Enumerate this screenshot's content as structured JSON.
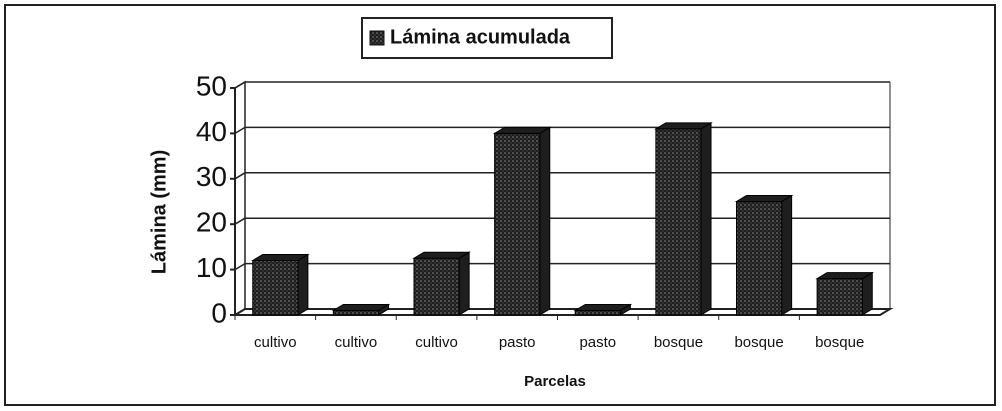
{
  "chart_data": {
    "type": "bar",
    "categories": [
      "cultivo",
      "cultivo",
      "cultivo",
      "pasto",
      "pasto",
      "bosque",
      "bosque",
      "bosque"
    ],
    "series": [
      {
        "name": "Lámina acumulada",
        "color": "#1e1e1e",
        "values": [
          12,
          1,
          12.5,
          40,
          1,
          41,
          25,
          8
        ]
      }
    ],
    "x_label": "Parcelas",
    "y_label": "Lámina (mm)",
    "ylim": [
      0,
      50
    ],
    "yticks": [
      0,
      10,
      20,
      30,
      40,
      50
    ],
    "grid": true,
    "legend": "top"
  }
}
